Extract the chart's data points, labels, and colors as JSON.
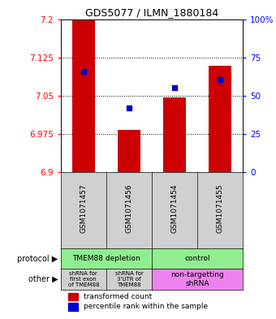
{
  "title": "GDS5077 / ILMN_1880184",
  "samples": [
    "GSM1071457",
    "GSM1071456",
    "GSM1071454",
    "GSM1071455"
  ],
  "red_values": [
    7.198,
    6.983,
    7.047,
    7.108
  ],
  "blue_values": [
    7.098,
    7.025,
    7.065,
    7.082
  ],
  "y_min": 6.9,
  "y_max": 7.2,
  "yticks": [
    6.9,
    6.975,
    7.05,
    7.125,
    7.2
  ],
  "ytick_labels": [
    "6.9",
    "6.975",
    "7.05",
    "7.125",
    "7.2"
  ],
  "pct_ticks": [
    0,
    25,
    50,
    75,
    100
  ],
  "pct_labels": [
    "0",
    "25",
    "50",
    "75",
    "100%"
  ],
  "protocol_label": "protocol",
  "other_label": "other",
  "legend_red": "transformed count",
  "legend_blue": "percentile rank within the sample",
  "bar_width": 0.5,
  "bar_color": "#CC0000",
  "dot_color": "#0000CC",
  "bg_color": "#D0D0D0",
  "green_color": "#90EE90",
  "magenta_color": "#EE82EE",
  "gray_color": "#D0D0D0"
}
